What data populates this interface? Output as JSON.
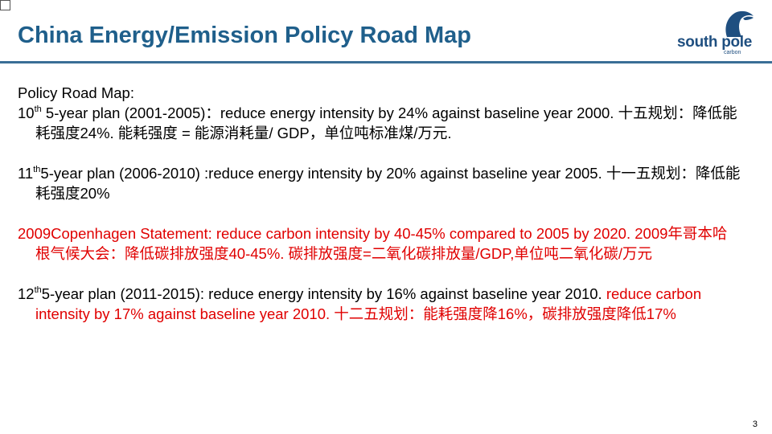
{
  "slide": {
    "title": "China Energy/Emission Policy Road Map",
    "page_number": "3"
  },
  "logo": {
    "name": "south pole",
    "sub": "carbon"
  },
  "content": {
    "heading": "Policy Road Map:",
    "p1": {
      "num": "10",
      "sup": "th",
      "text": " 5-year plan (2001-2005)：reduce energy intensity by 24% against baseline year 2000. 十五规划：降低能耗强度24%. 能耗强度 = 能源消耗量/ GDP，单位吨标准煤/万元."
    },
    "p2": {
      "num": "11",
      "sup": "th",
      "text": "5-year plan (2006-2010) :reduce energy intensity by 20% against baseline year 2005. 十一五规划：降低能耗强度20%"
    },
    "p3": {
      "text": "2009Copenhagen Statement: reduce carbon intensity by 40-45% compared to 2005 by 2020. 2009年哥本哈根气候大会：降低碳排放强度40-45%. 碳排放强度=二氧化碳排放量/GDP,单位吨二氧化碳/万元"
    },
    "p4": {
      "num": "12",
      "sup": "th",
      "text_black": "5-year plan (2011-2015):  reduce energy intensity by 16% against baseline year 2010. ",
      "text_red": "reduce carbon intensity by 17% against baseline year 2010. 十二五规划：能耗强度降16%，碳排放强度降低17%"
    }
  },
  "colors": {
    "title": "#1f5f8b",
    "rule": "#3a6e96",
    "emphasis": "#e00000",
    "logo": "#1f4f80"
  }
}
